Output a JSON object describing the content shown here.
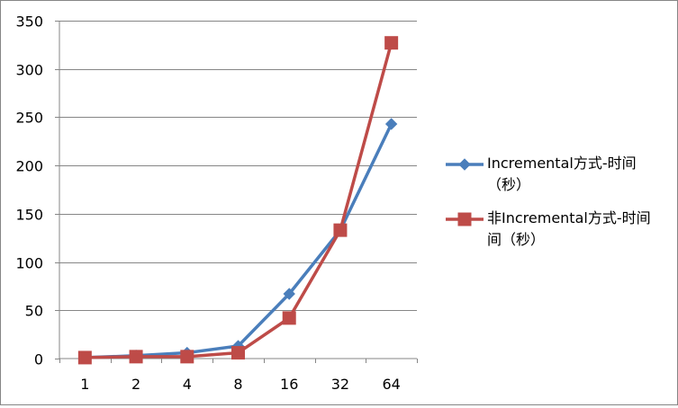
{
  "chart_data": {
    "type": "line",
    "title": "",
    "xlabel": "",
    "ylabel": "",
    "categories": [
      "1",
      "2",
      "4",
      "8",
      "16",
      "32",
      "64"
    ],
    "ylim": [
      0,
      350
    ],
    "y_ticks": [
      0,
      50,
      100,
      150,
      200,
      250,
      300,
      350
    ],
    "y_tick_labels": [
      "0",
      "50",
      "100",
      "150",
      "200",
      "250",
      "300",
      "350"
    ],
    "grid": "horizontal",
    "legend_position": "right",
    "series": [
      {
        "name": "Incremental方式-时间（秒）",
        "legend_lines": [
          "Incremental方式-时间",
          "（秒）"
        ],
        "values": [
          1,
          3,
          6,
          13,
          67,
          133,
          243
        ],
        "color": "#4a7ebb",
        "marker": "diamond"
      },
      {
        "name": "非Incremental方式-时间（秒）",
        "legend_lines": [
          "非Incremental方式-时间",
          "间（秒）"
        ],
        "values": [
          1,
          2,
          2,
          6,
          42,
          133,
          327
        ],
        "color": "#be4b48",
        "marker": "square"
      }
    ]
  }
}
